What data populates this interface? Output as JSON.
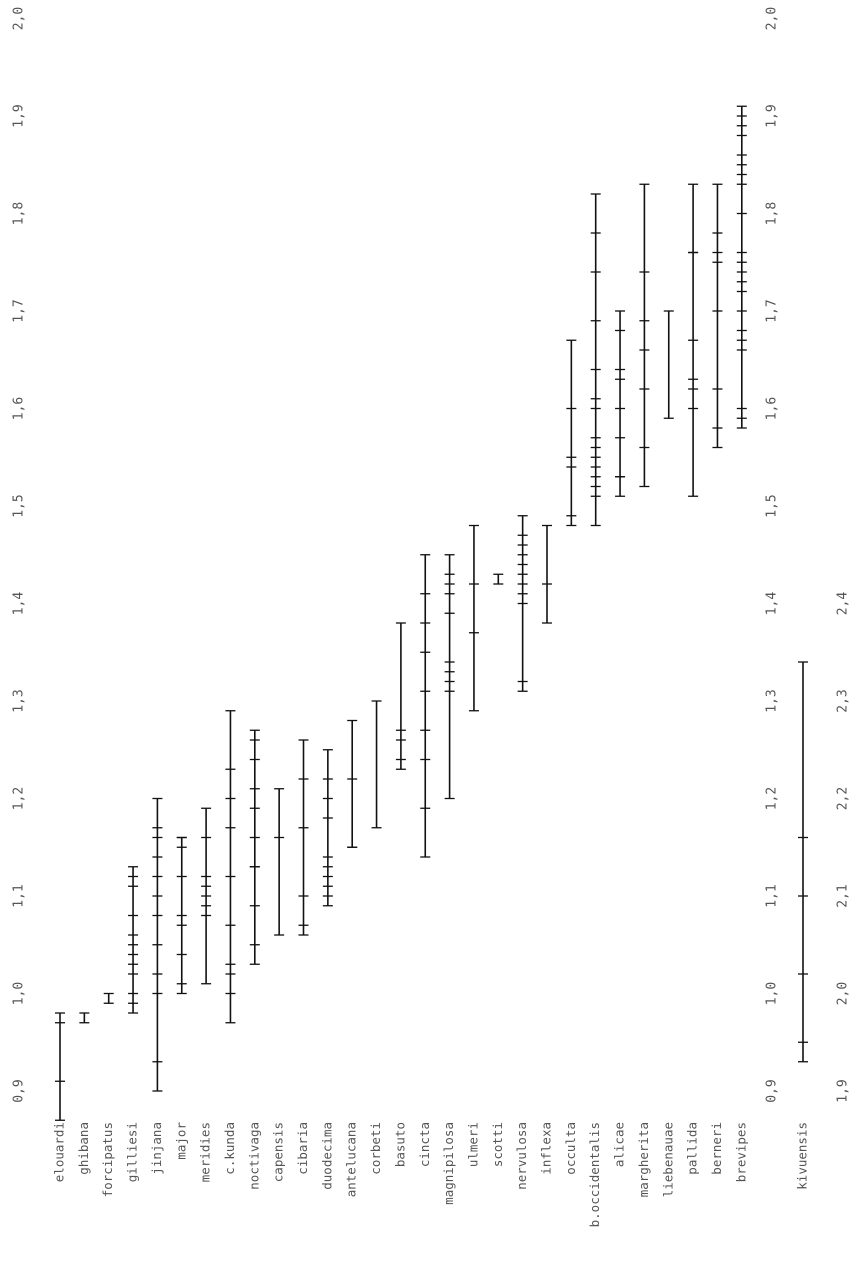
{
  "chart_data": {
    "type": "scatter",
    "orientation": "rotated-90",
    "value_axis": {
      "ticks": [
        "0,9",
        "1,0",
        "1,1",
        "1,2",
        "1,3",
        "1,4",
        "1,5",
        "1,6",
        "1,7",
        "1,8",
        "1,9",
        "2,0"
      ],
      "range": [
        0.9,
        2.0
      ]
    },
    "secondary_value_axis": {
      "ticks": [
        "1,9",
        "2,0",
        "2,1",
        "2,2",
        "2,3",
        "2,4"
      ],
      "range": [
        1.9,
        2.4
      ]
    },
    "series": [
      {
        "name": "elouardi",
        "values": [
          0.87,
          0.91,
          0.97,
          0.98
        ]
      },
      {
        "name": "ghibana",
        "values": [
          0.97,
          0.98
        ]
      },
      {
        "name": "forcipatus",
        "values": [
          0.99,
          1.0
        ]
      },
      {
        "name": "gilliesi",
        "values": [
          0.98,
          0.99,
          1.0,
          1.02,
          1.03,
          1.04,
          1.05,
          1.06,
          1.08,
          1.11,
          1.12,
          1.13
        ]
      },
      {
        "name": "jinjana",
        "values": [
          0.9,
          0.93,
          1.0,
          1.02,
          1.05,
          1.08,
          1.1,
          1.12,
          1.14,
          1.16,
          1.17,
          1.2
        ]
      },
      {
        "name": "major",
        "values": [
          1.0,
          1.01,
          1.04,
          1.07,
          1.08,
          1.12,
          1.15,
          1.16,
          1.16
        ]
      },
      {
        "name": "meridies",
        "values": [
          1.01,
          1.08,
          1.09,
          1.1,
          1.11,
          1.12,
          1.16,
          1.19
        ]
      },
      {
        "name": "c.kunda",
        "values": [
          0.97,
          1.0,
          1.02,
          1.03,
          1.07,
          1.12,
          1.17,
          1.2,
          1.23,
          1.29
        ]
      },
      {
        "name": "noctivaga",
        "values": [
          1.03,
          1.05,
          1.09,
          1.13,
          1.13,
          1.16,
          1.19,
          1.21,
          1.24,
          1.26,
          1.27
        ]
      },
      {
        "name": "capensis",
        "values": [
          1.06,
          1.16,
          1.21
        ]
      },
      {
        "name": "cibaria",
        "values": [
          1.06,
          1.07,
          1.1,
          1.17,
          1.22,
          1.26
        ]
      },
      {
        "name": "duodecima",
        "values": [
          1.09,
          1.1,
          1.11,
          1.12,
          1.13,
          1.14,
          1.18,
          1.2,
          1.22,
          1.25
        ]
      },
      {
        "name": "antelucana",
        "values": [
          1.15,
          1.15,
          1.22,
          1.28
        ]
      },
      {
        "name": "corbeti",
        "values": [
          1.17,
          1.3
        ]
      },
      {
        "name": "basuto",
        "values": [
          1.23,
          1.24,
          1.26,
          1.27,
          1.38
        ]
      },
      {
        "name": "cincta",
        "values": [
          1.14,
          1.19,
          1.24,
          1.27,
          1.31,
          1.35,
          1.38,
          1.41,
          1.45
        ]
      },
      {
        "name": "magnipilosa",
        "values": [
          1.2,
          1.31,
          1.32,
          1.33,
          1.34,
          1.39,
          1.41,
          1.42,
          1.43,
          1.45
        ]
      },
      {
        "name": "ulmeri",
        "values": [
          1.29,
          1.37,
          1.42,
          1.48
        ]
      },
      {
        "name": "scotti",
        "values": [
          1.42,
          1.43
        ]
      },
      {
        "name": "nervulosa",
        "values": [
          1.31,
          1.32,
          1.4,
          1.41,
          1.42,
          1.43,
          1.44,
          1.45,
          1.46,
          1.47,
          1.49
        ]
      },
      {
        "name": "inflexa",
        "values": [
          1.38,
          1.42,
          1.48
        ]
      },
      {
        "name": "occulta",
        "values": [
          1.48,
          1.49,
          1.54,
          1.55,
          1.6,
          1.67
        ]
      },
      {
        "name": "b.occidentalis",
        "values": [
          1.48,
          1.51,
          1.52,
          1.53,
          1.54,
          1.55,
          1.56,
          1.57,
          1.6,
          1.61,
          1.64,
          1.69,
          1.74,
          1.78,
          1.82
        ]
      },
      {
        "name": "alicae",
        "values": [
          1.51,
          1.53,
          1.53,
          1.57,
          1.6,
          1.63,
          1.64,
          1.68,
          1.7
        ]
      },
      {
        "name": "margherita",
        "values": [
          1.52,
          1.56,
          1.62,
          1.66,
          1.69,
          1.74,
          1.83
        ]
      },
      {
        "name": "liebenauae",
        "values": [
          1.59,
          1.7
        ]
      },
      {
        "name": "pallida",
        "values": [
          1.51,
          1.6,
          1.62,
          1.63,
          1.67,
          1.76,
          1.76,
          1.83
        ]
      },
      {
        "name": "berneri",
        "values": [
          1.56,
          1.58,
          1.62,
          1.7,
          1.75,
          1.76,
          1.78,
          1.83
        ]
      },
      {
        "name": "brevipes",
        "values": [
          1.58,
          1.59,
          1.6,
          1.66,
          1.67,
          1.68,
          1.7,
          1.72,
          1.73,
          1.74,
          1.75,
          1.76,
          1.8,
          1.83,
          1.84,
          1.85,
          1.86,
          1.88,
          1.89,
          1.9,
          1.91
        ]
      }
    ],
    "secondary_series": [
      {
        "name": "kivuensis",
        "values": [
          1.93,
          1.95,
          2.02,
          2.1,
          2.16,
          2.34
        ]
      }
    ],
    "grid": false,
    "legend": "none"
  }
}
